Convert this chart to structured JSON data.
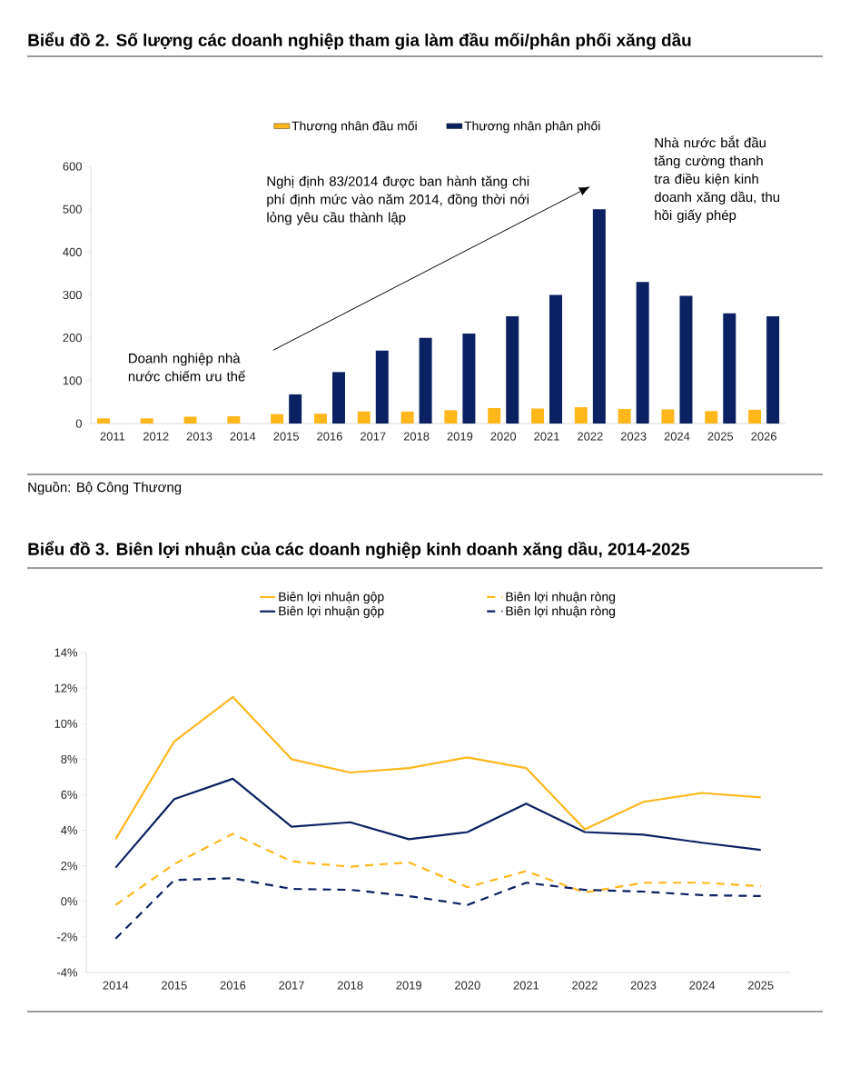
{
  "chart_data": [
    {
      "type": "bar",
      "title": "Biểu đồ 2. Số lượng các doanh nghiệp tham gia làm đầu mối/phân phối xăng dầu",
      "categories": [
        "2011",
        "2012",
        "2013",
        "2014",
        "2015",
        "2016",
        "2017",
        "2018",
        "2019",
        "2020",
        "2021",
        "2022",
        "2023",
        "2024",
        "2025",
        "2026"
      ],
      "series": [
        {
          "name": "Thương nhân đầu mối",
          "color": "#ffb71b",
          "values": [
            12,
            12,
            16,
            17,
            22,
            23,
            28,
            28,
            31,
            36,
            35,
            38,
            34,
            33,
            29,
            32
          ]
        },
        {
          "name": "Thương nhân phân phối",
          "color": "#0b2161",
          "values": [
            null,
            null,
            null,
            null,
            68,
            120,
            170,
            200,
            210,
            250,
            300,
            500,
            330,
            298,
            257,
            250
          ]
        }
      ],
      "ylim": [
        0,
        600
      ],
      "yticks": [
        0,
        100,
        200,
        300,
        400,
        500,
        600
      ],
      "legend": "top",
      "annotations": [
        "Nghị định 83/2014 được ban hành tăng chi phí định mức vào năm 2014, đồng thời nới lỏng yêu cầu thành lập",
        "Nhà nước bắt đầu tăng cường thanh tra điều kiện kinh doanh xăng dầu, thu hồi giấy phép",
        "Doanh nghiệp nhà nước chiếm ưu thế",
        "Nguồn: Bộ Công Thương"
      ]
    },
    {
      "type": "line",
      "title": "Biểu đồ 3. Biên lợi nhuận của các doanh nghiệp kinh doanh xăng dầu, 2014-2025",
      "categories": [
        "2014",
        "2015",
        "2016",
        "2017",
        "2018",
        "2019",
        "2020",
        "2021",
        "2022",
        "2023",
        "2024",
        "2025"
      ],
      "series": [
        {
          "name": "Biên lợi nhuận gộp",
          "color": "#ffb71b",
          "line_style": "solid",
          "values": [
            3.5,
            9.0,
            11.5,
            8.0,
            7.25,
            7.5,
            8.1,
            7.5,
            4.05,
            5.6,
            6.1,
            5.85
          ]
        },
        {
          "name": "Biên lợi nhuận ròng",
          "color": "#ffb71b",
          "line_style": "dashed",
          "values": [
            -0.2,
            2.1,
            3.8,
            2.25,
            1.95,
            2.2,
            0.8,
            1.7,
            0.5,
            1.05,
            1.05,
            0.85
          ]
        },
        {
          "name": "Biên lợi nhuận gộp",
          "color": "#0b2161",
          "line_style": "solid",
          "values": [
            1.9,
            5.75,
            6.9,
            4.2,
            4.45,
            3.5,
            3.9,
            5.5,
            3.9,
            3.75,
            3.3,
            2.9
          ]
        },
        {
          "name": "Biên lợi nhuận ròng",
          "color": "#0b2161",
          "line_style": "dashed",
          "values": [
            -2.1,
            1.2,
            1.3,
            0.7,
            0.65,
            0.3,
            -0.2,
            1.05,
            0.65,
            0.55,
            0.35,
            0.3
          ]
        }
      ],
      "ylim": [
        -4,
        14
      ],
      "yticks": [
        {
          "value": -4,
          "label": "-4%"
        },
        {
          "value": -2,
          "label": "-2%"
        },
        {
          "value": 0,
          "label": "0%"
        },
        {
          "value": 2,
          "label": "2%"
        },
        {
          "value": 4,
          "label": "4%"
        },
        {
          "value": 6,
          "label": "6%"
        },
        {
          "value": 8,
          "label": "8%"
        },
        {
          "value": 10,
          "label": "10%"
        },
        {
          "value": 12,
          "label": "12%"
        },
        {
          "value": 14,
          "label": "14%"
        }
      ],
      "legend": "top"
    }
  ]
}
